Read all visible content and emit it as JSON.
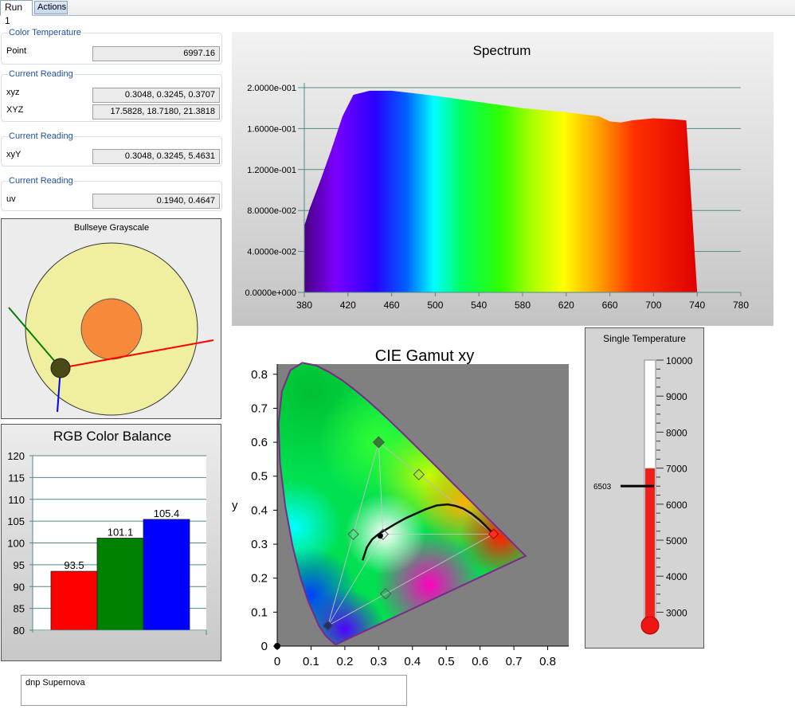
{
  "tabs": [
    {
      "label": "Run 1"
    },
    {
      "label": "Actions"
    }
  ],
  "color_temperature": {
    "title": "Color Temperature",
    "label": "Point",
    "value": "6997.16"
  },
  "reading_xyz": {
    "title": "Current Reading",
    "xyz_label": "xyz",
    "xyz_value": "0.3048, 0.3245, 0.3707",
    "XYZ_label": "XYZ",
    "XYZ_value": "17.5828, 18.7180, 21.3818"
  },
  "reading_xyY": {
    "title": "Current Reading",
    "label": "xyY",
    "value": "0.3048, 0.3245, 5.4631"
  },
  "reading_uv": {
    "title": "Current Reading",
    "label": "uv",
    "value": "0.1940, 0.4647"
  },
  "bullseye": {
    "title": "Bullseye Grayscale"
  },
  "thermometer": {
    "title": "Single Temperature",
    "marker_label": "6503",
    "ticks": [
      "10000",
      "9000",
      "8000",
      "7000",
      "6000",
      "5000",
      "4000",
      "3000"
    ],
    "min": 2700,
    "max": 10000,
    "level": 6997,
    "marker": 6503
  },
  "note": {
    "text": "dnp Supernova"
  },
  "chart_data": [
    {
      "type": "area",
      "title": "Spectrum",
      "x": [
        380,
        385,
        395,
        405,
        415,
        425,
        440,
        460,
        500,
        540,
        580,
        620,
        650,
        660,
        670,
        680,
        700,
        720,
        730,
        740
      ],
      "y": [
        0.065,
        0.082,
        0.11,
        0.14,
        0.172,
        0.193,
        0.197,
        0.197,
        0.192,
        0.186,
        0.18,
        0.176,
        0.172,
        0.167,
        0.166,
        0.168,
        0.17,
        0.169,
        0.168,
        0.0
      ],
      "xticks": [
        "380",
        "420",
        "460",
        "500",
        "540",
        "580",
        "620",
        "660",
        "700",
        "740",
        "780"
      ],
      "yticks": [
        "0.0000e+000",
        "4.0000e-002",
        "8.0000e-002",
        "1.2000e-001",
        "1.6000e-001",
        "2.0000e-001"
      ],
      "xlim": [
        380,
        780
      ],
      "ylim": [
        0,
        0.2
      ],
      "grid": true
    },
    {
      "type": "bar",
      "title": "RGB Color Balance",
      "categories": [
        "R",
        "G",
        "B"
      ],
      "values": [
        93.5,
        101.1,
        105.4
      ],
      "labels": [
        "93.5",
        "101.1",
        "105.4"
      ],
      "colors": [
        "#ff0000",
        "#008000",
        "#0000ff"
      ],
      "yticks": [
        "80",
        "85",
        "90",
        "95",
        "100",
        "105",
        "110",
        "115",
        "120"
      ],
      "ylim": [
        80,
        120
      ],
      "grid": true
    },
    {
      "type": "scatter",
      "title": "CIE Gamut xy",
      "xlabel": "x",
      "ylabel": "y",
      "xticks": [
        "0",
        "0.1",
        "0.2",
        "0.3",
        "0.4",
        "0.5",
        "0.6",
        "0.7",
        "0.8"
      ],
      "yticks": [
        "0",
        "0.1",
        "0.2",
        "0.3",
        "0.4",
        "0.5",
        "0.6",
        "0.7",
        "0.8"
      ],
      "xlim": [
        0,
        0.86
      ],
      "ylim": [
        0,
        0.83
      ],
      "target_gamut": [
        [
          0.64,
          0.33
        ],
        [
          0.3,
          0.6
        ],
        [
          0.15,
          0.06
        ]
      ],
      "target_secondaries": [
        [
          0.225,
          0.329
        ],
        [
          0.321,
          0.154
        ],
        [
          0.419,
          0.505
        ]
      ],
      "white_target": [
        0.3127,
        0.329
      ],
      "white_measured": [
        0.3048,
        0.3245
      ],
      "origin_point": [
        0,
        0
      ]
    }
  ]
}
